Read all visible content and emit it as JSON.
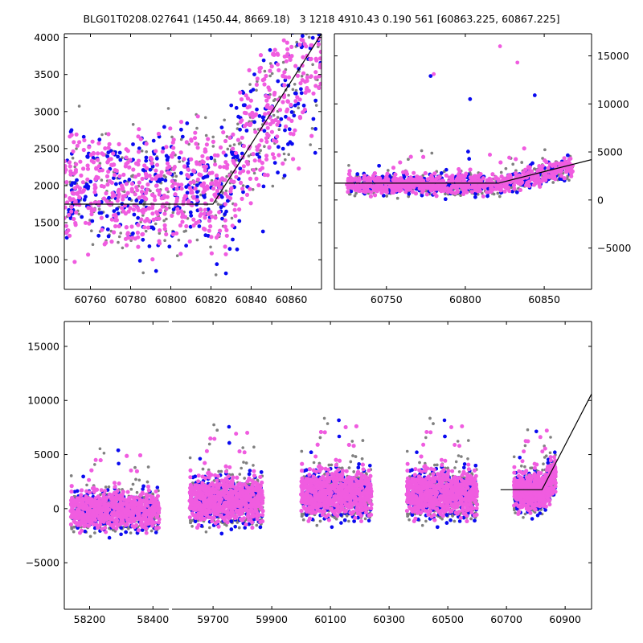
{
  "title": "BLG01T0208.027641 (1450.44, 8669.18)   3 1218 4910.43 0.190 561 [60863.225, 60867.225]",
  "colors": {
    "series_a": "#808080",
    "series_b": "#0a0af0",
    "series_c": "#f05ce0",
    "model_line": "#000000"
  },
  "chart_data": [
    {
      "type": "scatter",
      "panel": "top-left zoom",
      "xlim": [
        60747,
        60875
      ],
      "ylim": [
        600,
        4050
      ],
      "xticks": [
        60760,
        60780,
        60800,
        60820,
        60840,
        60860
      ],
      "yticks": [
        1000,
        1500,
        2000,
        2500,
        3000,
        3500,
        4000
      ],
      "series": [
        {
          "color": "#808080",
          "description": "grey points"
        },
        {
          "color": "#0a0af0",
          "description": "blue points"
        },
        {
          "color": "#f05ce0",
          "description": "magenta points"
        }
      ],
      "model_line": {
        "x": [
          60747,
          60821,
          60875
        ],
        "y": [
          1750,
          1750,
          4050
        ]
      },
      "grid": false,
      "legend": "none"
    },
    {
      "type": "scatter",
      "panel": "top-right",
      "xlim": [
        60717,
        60880
      ],
      "ylim": [
        -9300,
        17300
      ],
      "xticks": [
        60750,
        60800,
        60850
      ],
      "yticks": [
        -5000,
        0,
        5000,
        10000,
        15000
      ],
      "yaxis_side": "right",
      "model_line": {
        "x": [
          60717,
          60821,
          60880
        ],
        "y": [
          1750,
          1750,
          4200
        ]
      },
      "outliers": [
        {
          "x": 60778,
          "y": 12900
        },
        {
          "x": 60780,
          "y": 13100
        },
        {
          "x": 60803,
          "y": 10500
        },
        {
          "x": 60833,
          "y": 14300
        },
        {
          "x": 60844,
          "y": 10900
        },
        {
          "x": 60822,
          "y": 16000
        }
      ],
      "grid": false,
      "legend": "none"
    },
    {
      "type": "scatter",
      "panel": "bottom full light curve (broken x-axis)",
      "ylim": [
        -9300,
        17300
      ],
      "yticks": [
        -5000,
        0,
        5000,
        10000,
        15000
      ],
      "segments": [
        {
          "xlim": [
            58120,
            58450
          ],
          "xticks": [
            58200,
            58400
          ],
          "x_range": [
            58140,
            58420
          ],
          "center": -150,
          "spread": 900
        },
        {
          "xlim": [
            59560,
            60990
          ],
          "xticks": [
            59700,
            59900,
            60100,
            60300,
            60500,
            60700,
            60900
          ],
          "seasons": [
            {
              "x_range": [
                59620,
                59870
              ],
              "center": 800,
              "spread": 1100
            },
            {
              "x_range": [
                60000,
                60240
              ],
              "center": 1400,
              "spread": 1100
            },
            {
              "x_range": [
                60360,
                60600
              ],
              "center": 1400,
              "spread": 1100
            },
            {
              "x_range": [
                60725,
                60868
              ],
              "center": 1600,
              "spread": 900
            }
          ],
          "model_line": {
            "x": [
              60680,
              60821,
              60990
            ],
            "y": [
              1750,
              1750,
              10600
            ]
          }
        }
      ],
      "grid": false,
      "legend": "none"
    }
  ]
}
